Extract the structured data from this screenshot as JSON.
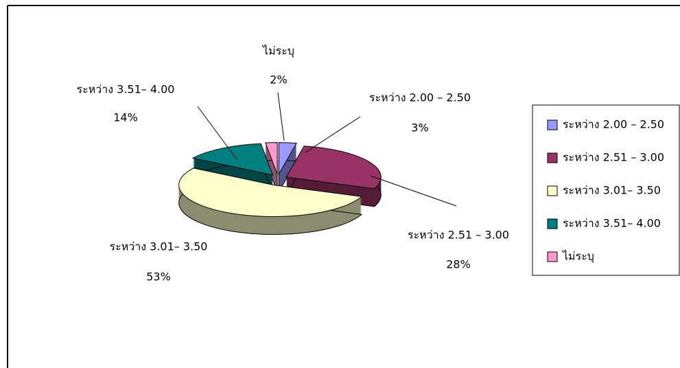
{
  "chart_data": {
    "type": "pie",
    "categories": [
      "ระหว่าง 2.00 – 2.50",
      "ระหว่าง 2.51 – 3.00",
      "ระหว่าง 3.01– 3.50",
      "ระหว่าง 3.51– 4.00",
      "ไม่ระบุ"
    ],
    "values": [
      3,
      28,
      53,
      14,
      2
    ],
    "value_labels": [
      "3%",
      "28%",
      "53%",
      "14%",
      "2%"
    ],
    "colors": [
      "#9999ff",
      "#993366",
      "#ffffcc",
      "#008080",
      "#ff99cc"
    ],
    "legend": "right"
  }
}
